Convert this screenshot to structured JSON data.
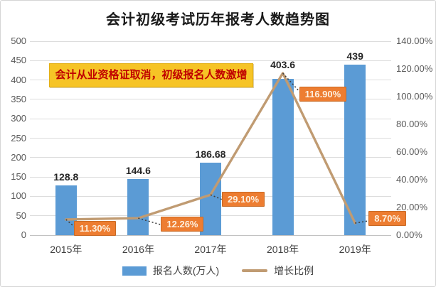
{
  "title": "会计初级考试历年报考人数趋势图",
  "annotation": {
    "text": "会计从业资格证取消，初级报名人数激增",
    "bg_color": "#F6C426",
    "border_color": "#E3B017",
    "text_color": "#C00000"
  },
  "colors": {
    "bar": "#5B9BD5",
    "line": "#C09B72",
    "pct_label_bg": "#ED7D31",
    "pct_label_border": "#C96A24",
    "pct_label_text": "#FDF0E0",
    "leader": "#404040"
  },
  "legend": [
    {
      "label": "报名人数(万人)",
      "swatch": "bar",
      "color": "#5B9BD5"
    },
    {
      "label": "增长比例",
      "swatch": "line",
      "color": "#C09B72"
    }
  ],
  "chart_data": {
    "type": "bar",
    "subtype": "combo-bar-line-dual-axis",
    "title": "会计初级考试历年报考人数趋势图",
    "categories": [
      "2015年",
      "2016年",
      "2017年",
      "2018年",
      "2019年"
    ],
    "series": [
      {
        "name": "报名人数(万人)",
        "type": "bar",
        "axis": "left",
        "color": "#5B9BD5",
        "values": [
          128.8,
          144.6,
          186.68,
          403.6,
          439
        ],
        "data_labels": [
          "128.8",
          "144.6",
          "186.68",
          "403.6",
          "439"
        ]
      },
      {
        "name": "增长比例",
        "type": "line",
        "axis": "right",
        "color": "#C09B72",
        "values": [
          11.3,
          12.26,
          29.1,
          116.9,
          8.7
        ],
        "data_labels": [
          "11.30%",
          "12.26%",
          "29.10%",
          "116.90%",
          "8.70%"
        ]
      }
    ],
    "left_axis": {
      "min": 0,
      "max": 500,
      "step": 50,
      "ticks": [
        "500",
        "450",
        "400",
        "350",
        "300",
        "250",
        "200",
        "150",
        "100",
        "50",
        "0"
      ]
    },
    "right_axis": {
      "min": 0,
      "max": 140,
      "step": 20,
      "ticks": [
        "140.00%",
        "120.00%",
        "100.00%",
        "80.00%",
        "60.00%",
        "40.00%",
        "20.00%",
        "0.00%"
      ]
    },
    "grid": true,
    "legend_position": "bottom"
  }
}
